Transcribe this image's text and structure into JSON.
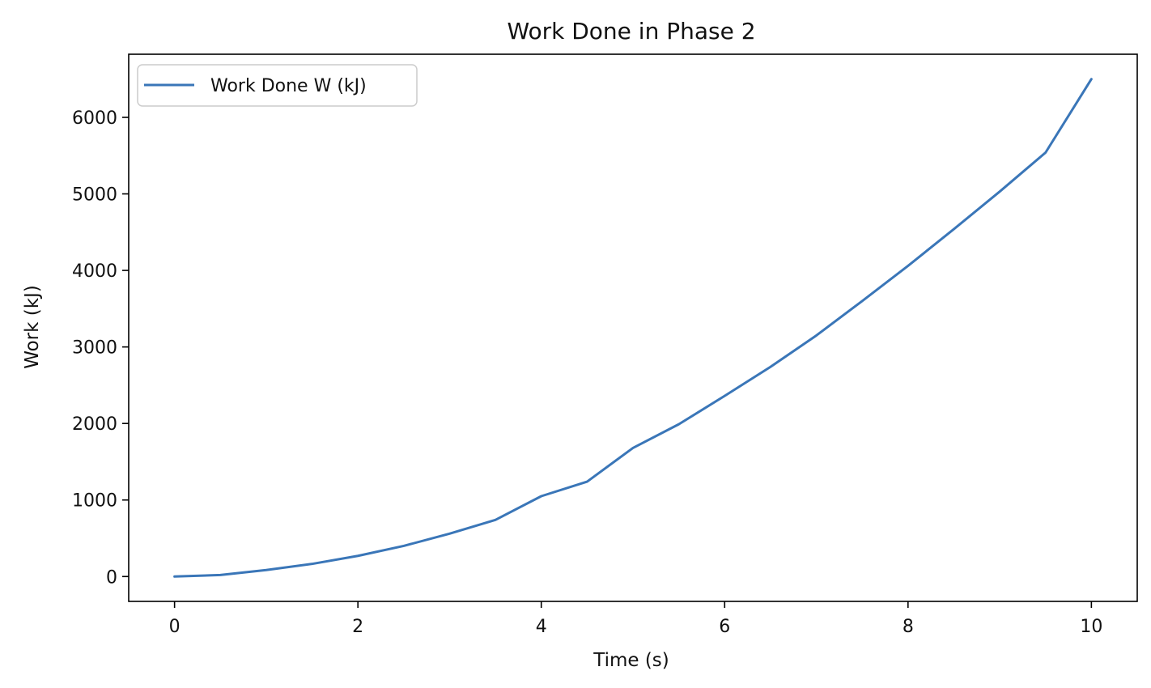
{
  "chart_data": {
    "type": "line",
    "title": "Work Done in Phase 2",
    "xlabel": "Time (s)",
    "ylabel": "Work (kJ)",
    "xlim": [
      -0.5,
      10.5
    ],
    "ylim": [
      -325,
      6825
    ],
    "xticks": [
      0,
      2,
      4,
      6,
      8,
      10
    ],
    "yticks": [
      0,
      1000,
      2000,
      3000,
      4000,
      5000,
      6000
    ],
    "grid": false,
    "legend_position": "top-left",
    "series": [
      {
        "name": "Work Done W (kJ)",
        "color": "#3a76b8",
        "x": [
          0,
          0.5,
          1,
          1.5,
          2,
          2.5,
          3,
          3.5,
          4,
          4.5,
          5,
          5.5,
          6,
          6.5,
          7,
          7.5,
          8,
          8.5,
          9,
          9.5,
          10
        ],
        "y": [
          0,
          20,
          85,
          165,
          270,
          400,
          560,
          740,
          1050,
          1240,
          1680,
          1990,
          2360,
          2740,
          3150,
          3600,
          4060,
          4540,
          5030,
          5540,
          6500
        ]
      }
    ]
  }
}
